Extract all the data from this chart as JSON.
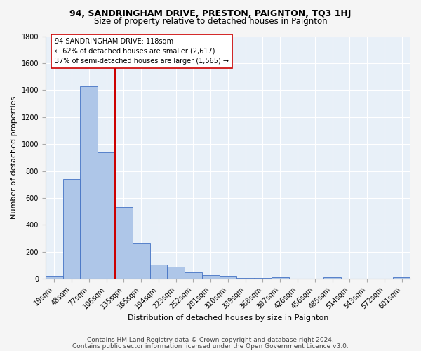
{
  "title1": "94, SANDRINGHAM DRIVE, PRESTON, PAIGNTON, TQ3 1HJ",
  "title2": "Size of property relative to detached houses in Paignton",
  "xlabel": "Distribution of detached houses by size in Paignton",
  "ylabel": "Number of detached properties",
  "footnote1": "Contains HM Land Registry data © Crown copyright and database right 2024.",
  "footnote2": "Contains public sector information licensed under the Open Government Licence v3.0.",
  "categories": [
    "19sqm",
    "48sqm",
    "77sqm",
    "106sqm",
    "135sqm",
    "165sqm",
    "194sqm",
    "223sqm",
    "252sqm",
    "281sqm",
    "310sqm",
    "339sqm",
    "368sqm",
    "397sqm",
    "426sqm",
    "456sqm",
    "485sqm",
    "514sqm",
    "543sqm",
    "572sqm",
    "601sqm"
  ],
  "values": [
    20,
    740,
    1430,
    940,
    530,
    265,
    105,
    90,
    48,
    27,
    20,
    8,
    5,
    14,
    3,
    2,
    10,
    2,
    2,
    2,
    10
  ],
  "bar_color": "#aec6e8",
  "bar_edge_color": "#4472c4",
  "property_bin_index": 3,
  "vline_color": "#cc0000",
  "annotation_text": "94 SANDRINGHAM DRIVE: 118sqm\n← 62% of detached houses are smaller (2,617)\n37% of semi-detached houses are larger (1,565) →",
  "annotation_box_color": "#ffffff",
  "annotation_box_edge": "#cc0000",
  "ylim_max": 1800,
  "bg_color": "#e8f0f8",
  "fig_bg_color": "#f5f5f5",
  "grid_color": "#ffffff",
  "title1_fontsize": 9,
  "title2_fontsize": 8.5,
  "axis_label_fontsize": 8,
  "tick_fontsize": 7,
  "annot_fontsize": 7,
  "footnote_fontsize": 6.5,
  "yticks": [
    0,
    200,
    400,
    600,
    800,
    1000,
    1200,
    1400,
    1600,
    1800
  ]
}
